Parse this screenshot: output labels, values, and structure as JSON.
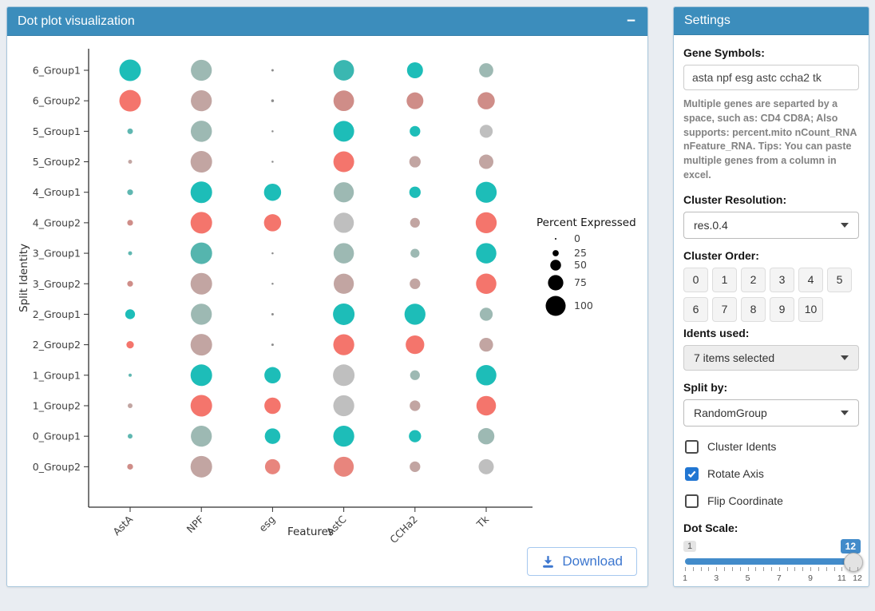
{
  "plot_panel": {
    "title": "Dot plot visualization",
    "collapse_label": "−",
    "download_label": "Download"
  },
  "chart_data": {
    "type": "scatter",
    "subtype": "split-dot-plot",
    "title": "",
    "xlabel": "Features",
    "ylabel": "Split Identity",
    "x_categories": [
      "AstA",
      "NPF",
      "esg",
      "AstC",
      "CCHa2",
      "Tk"
    ],
    "y_categories": [
      "6_Group1",
      "6_Group2",
      "5_Group1",
      "5_Group2",
      "4_Group1",
      "4_Group2",
      "3_Group1",
      "3_Group2",
      "2_Group1",
      "2_Group2",
      "1_Group1",
      "1_Group2",
      "0_Group1",
      "0_Group2"
    ],
    "legend": {
      "title": "Percent Expressed",
      "sizes": [
        0,
        25,
        50,
        75,
        100
      ],
      "position": "right"
    },
    "cells": [
      [
        {
          "p": 100,
          "c": "#1dbdb8"
        },
        {
          "p": 97,
          "c": "#9db9b3"
        },
        {
          "p": 4,
          "c": "#8c8c8c"
        },
        {
          "p": 95,
          "c": "#3ab7b1"
        },
        {
          "p": 72,
          "c": "#1dbdb8"
        },
        {
          "p": 63,
          "c": "#9db9b3"
        }
      ],
      [
        {
          "p": 100,
          "c": "#f4756c"
        },
        {
          "p": 97,
          "c": "#c2a5a2"
        },
        {
          "p": 6,
          "c": "#8c8c8c"
        },
        {
          "p": 95,
          "c": "#cf8d88"
        },
        {
          "p": 76,
          "c": "#cf8d88"
        },
        {
          "p": 78,
          "c": "#cf8d88"
        }
      ],
      [
        {
          "p": 20,
          "c": "#5fb7b1"
        },
        {
          "p": 98,
          "c": "#9db9b3"
        },
        {
          "p": 2,
          "c": "#8c8c8c"
        },
        {
          "p": 96,
          "c": "#1dbdb8"
        },
        {
          "p": 45,
          "c": "#1dbdb8"
        },
        {
          "p": 57,
          "c": "#bfbfbf"
        }
      ],
      [
        {
          "p": 12,
          "c": "#c2a5a2"
        },
        {
          "p": 100,
          "c": "#c2a5a2"
        },
        {
          "p": 2,
          "c": "#8c8c8c"
        },
        {
          "p": 96,
          "c": "#f4756c"
        },
        {
          "p": 49,
          "c": "#c2a5a2"
        },
        {
          "p": 64,
          "c": "#c2a5a2"
        }
      ],
      [
        {
          "p": 21,
          "c": "#5fb7b1"
        },
        {
          "p": 100,
          "c": "#1dbdb8"
        },
        {
          "p": 78,
          "c": "#1dbdb8"
        },
        {
          "p": 93,
          "c": "#9db9b3"
        },
        {
          "p": 49,
          "c": "#1dbdb8"
        },
        {
          "p": 97,
          "c": "#1dbdb8"
        }
      ],
      [
        {
          "p": 21,
          "c": "#cf8d88"
        },
        {
          "p": 100,
          "c": "#f4756c"
        },
        {
          "p": 78,
          "c": "#f4756c"
        },
        {
          "p": 93,
          "c": "#bfbfbf"
        },
        {
          "p": 41,
          "c": "#c2a5a2"
        },
        {
          "p": 97,
          "c": "#f4756c"
        }
      ],
      [
        {
          "p": 12,
          "c": "#5fb7b1"
        },
        {
          "p": 100,
          "c": "#55b5ae"
        },
        {
          "p": 2,
          "c": "#8c8c8c"
        },
        {
          "p": 94,
          "c": "#9db9b3"
        },
        {
          "p": 37,
          "c": "#9db9b3"
        },
        {
          "p": 94,
          "c": "#1dbdb8"
        }
      ],
      [
        {
          "p": 21,
          "c": "#cf8d88"
        },
        {
          "p": 100,
          "c": "#c2a5a2"
        },
        {
          "p": 2,
          "c": "#8c8c8c"
        },
        {
          "p": 93,
          "c": "#c2a5a2"
        },
        {
          "p": 45,
          "c": "#c2a5a2"
        },
        {
          "p": 94,
          "c": "#f4756c"
        }
      ],
      [
        {
          "p": 41,
          "c": "#1dbdb8"
        },
        {
          "p": 97,
          "c": "#9db9b3"
        },
        {
          "p": 4,
          "c": "#8c8c8c"
        },
        {
          "p": 100,
          "c": "#1dbdb8"
        },
        {
          "p": 97,
          "c": "#1dbdb8"
        },
        {
          "p": 57,
          "c": "#9db9b3"
        }
      ],
      [
        {
          "p": 29,
          "c": "#f4756c"
        },
        {
          "p": 100,
          "c": "#c2a5a2"
        },
        {
          "p": 4,
          "c": "#8c8c8c"
        },
        {
          "p": 97,
          "c": "#f4756c"
        },
        {
          "p": 85,
          "c": "#f4756c"
        },
        {
          "p": 61,
          "c": "#c2a5a2"
        }
      ],
      [
        {
          "p": 8,
          "c": "#5fb7b1"
        },
        {
          "p": 100,
          "c": "#1dbdb8"
        },
        {
          "p": 74,
          "c": "#1dbdb8"
        },
        {
          "p": 100,
          "c": "#bfbfbf"
        },
        {
          "p": 41,
          "c": "#9db9b3"
        },
        {
          "p": 94,
          "c": "#1dbdb8"
        }
      ],
      [
        {
          "p": 16,
          "c": "#c2a5a2"
        },
        {
          "p": 100,
          "c": "#f4756c"
        },
        {
          "p": 74,
          "c": "#f4756c"
        },
        {
          "p": 97,
          "c": "#bfbfbf"
        },
        {
          "p": 45,
          "c": "#c2a5a2"
        },
        {
          "p": 90,
          "c": "#f4756c"
        }
      ],
      [
        {
          "p": 16,
          "c": "#5fb7b1"
        },
        {
          "p": 97,
          "c": "#9db9b3"
        },
        {
          "p": 70,
          "c": "#1dbdb8"
        },
        {
          "p": 97,
          "c": "#1dbdb8"
        },
        {
          "p": 53,
          "c": "#1dbdb8"
        },
        {
          "p": 74,
          "c": "#9db9b3"
        }
      ],
      [
        {
          "p": 21,
          "c": "#cf8d88"
        },
        {
          "p": 100,
          "c": "#c2a5a2"
        },
        {
          "p": 68,
          "c": "#e8857d"
        },
        {
          "p": 92,
          "c": "#e8857d"
        },
        {
          "p": 45,
          "c": "#c2a5a2"
        },
        {
          "p": 68,
          "c": "#bfbfbf"
        }
      ]
    ]
  },
  "settings": {
    "title": "Settings",
    "gene_symbols": {
      "label": "Gene Symbols:",
      "value": "asta npf esg astc ccha2 tk",
      "help": "Multiple genes are separted by a space, such as: CD4 CD8A; Also supports: percent.mito nCount_RNA nFeature_RNA. Tips: You can paste multiple genes from a column in excel."
    },
    "cluster_resolution": {
      "label": "Cluster Resolution:",
      "value": "res.0.4"
    },
    "cluster_order": {
      "label": "Cluster Order:",
      "buttons": [
        "0",
        "1",
        "2",
        "3",
        "4",
        "5",
        "6",
        "7",
        "8",
        "9",
        "10"
      ]
    },
    "idents_used": {
      "label": "Idents used:",
      "value": "7 items selected"
    },
    "split_by": {
      "label": "Split by:",
      "value": "RandomGroup"
    },
    "checkboxes": [
      {
        "label": "Cluster Idents",
        "checked": false
      },
      {
        "label": "Rotate Axis",
        "checked": true
      },
      {
        "label": "Flip Coordinate",
        "checked": false
      }
    ],
    "dot_scale": {
      "label": "Dot Scale:",
      "min": 1,
      "max": 12,
      "value": 12,
      "min_label": "1",
      "value_label": "12",
      "tick_labels": [
        "1",
        "3",
        "5",
        "7",
        "9",
        "11",
        "12"
      ],
      "tick_values": [
        1,
        3,
        5,
        7,
        9,
        11,
        12
      ]
    },
    "accent_color": "#3c8dbc",
    "slider_color": "#428bca",
    "checkbox_checked_color": "#2176d2",
    "download_color": "#3d77cf"
  }
}
